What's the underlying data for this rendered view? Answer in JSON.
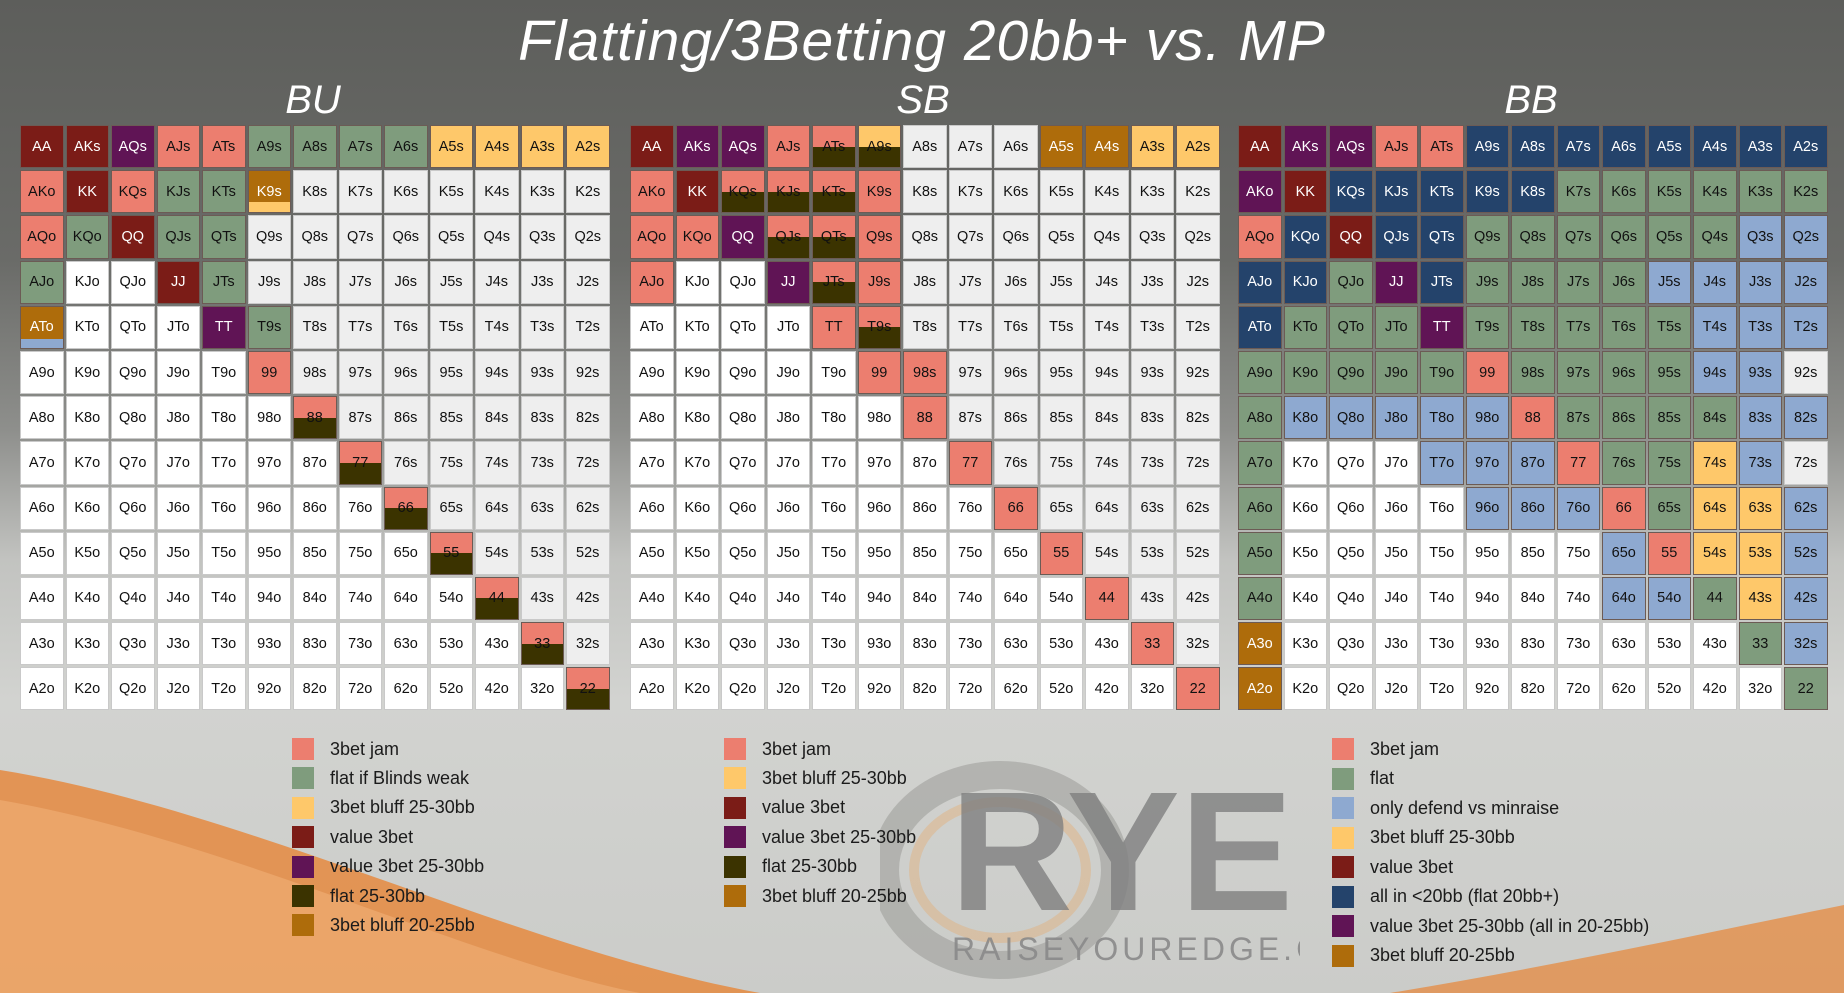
{
  "title": "Flatting/3Betting 20bb+ vs. MP",
  "ranks": [
    "A",
    "K",
    "Q",
    "J",
    "T",
    "9",
    "8",
    "7",
    "6",
    "5",
    "4",
    "3",
    "2"
  ],
  "colors": {
    "jam": "#ec7e6f",
    "flat": "#7f9c7d",
    "bluff": "#fec86a",
    "value": "#7b1c17",
    "value2530": "#601455",
    "flat2530": "#3b3300",
    "bluff2025": "#ae6c0b",
    "minraise": "#8ea9d0",
    "allin": "#24436b"
  },
  "panels": [
    {
      "title": "BU",
      "cells": {
        "AA": {
          "c": "value"
        },
        "AKs": {
          "c": "value"
        },
        "AQs": {
          "c": "value2530"
        },
        "AJs": {
          "c": "jam"
        },
        "ATs": {
          "c": "jam"
        },
        "A9s": {
          "c": "flat"
        },
        "A8s": {
          "c": "flat"
        },
        "A7s": {
          "c": "flat"
        },
        "A6s": {
          "c": "flat"
        },
        "A5s": {
          "c": "bluff"
        },
        "A4s": {
          "c": "bluff"
        },
        "A3s": {
          "c": "bluff"
        },
        "A2s": {
          "c": "bluff"
        },
        "AKo": {
          "c": "jam"
        },
        "KK": {
          "c": "value"
        },
        "KQs": {
          "c": "jam"
        },
        "KJs": {
          "c": "flat"
        },
        "KTs": {
          "c": "flat"
        },
        "K9s": {
          "c": "bluff2025",
          "s": [
            {
              "c": "bluff",
              "f": 0.25
            }
          ]
        },
        "AQo": {
          "c": "jam"
        },
        "KQo": {
          "c": "flat"
        },
        "QQ": {
          "c": "value"
        },
        "QJs": {
          "c": "flat"
        },
        "QTs": {
          "c": "flat"
        },
        "AJo": {
          "c": "flat"
        },
        "JJ": {
          "c": "value"
        },
        "JTs": {
          "c": "flat"
        },
        "ATo": {
          "c": "bluff2025",
          "s": [
            {
              "c": "minraise",
              "f": 0.22
            }
          ]
        },
        "TT": {
          "c": "value2530"
        },
        "T9s": {
          "c": "flat"
        },
        "99": {
          "c": "jam"
        },
        "88": {
          "c": "jam",
          "s": [
            {
              "c": "flat2530",
              "f": 0.5
            }
          ]
        },
        "77": {
          "c": "jam",
          "s": [
            {
              "c": "flat2530",
              "f": 0.5
            }
          ]
        },
        "66": {
          "c": "jam",
          "s": [
            {
              "c": "flat2530",
              "f": 0.5
            }
          ]
        },
        "55": {
          "c": "jam",
          "s": [
            {
              "c": "flat2530",
              "f": 0.5
            }
          ]
        },
        "44": {
          "c": "jam",
          "s": [
            {
              "c": "flat2530",
              "f": 0.5
            }
          ]
        },
        "33": {
          "c": "jam",
          "s": [
            {
              "c": "flat2530",
              "f": 0.5
            }
          ]
        },
        "22": {
          "c": "jam",
          "s": [
            {
              "c": "flat2530",
              "f": 0.5
            }
          ]
        }
      },
      "legend": [
        {
          "key": "jam",
          "label": "3bet jam"
        },
        {
          "key": "flat",
          "label": "flat if Blinds weak"
        },
        {
          "key": "bluff",
          "label": "3bet bluff 25-30bb"
        },
        {
          "key": "value",
          "label": "value 3bet"
        },
        {
          "key": "value2530",
          "label": "value 3bet 25-30bb"
        },
        {
          "key": "flat2530",
          "label": "flat 25-30bb"
        },
        {
          "key": "bluff2025",
          "label": "3bet bluff 20-25bb"
        }
      ]
    },
    {
      "title": "SB",
      "cells": {
        "AA": {
          "c": "value"
        },
        "AKs": {
          "c": "value2530"
        },
        "AQs": {
          "c": "value2530"
        },
        "AJs": {
          "c": "jam"
        },
        "ATs": {
          "c": "jam",
          "s": [
            {
              "c": "flat2530",
              "f": 0.5
            }
          ]
        },
        "A9s": {
          "c": "bluff",
          "s": [
            {
              "c": "flat2530",
              "f": 0.5
            }
          ]
        },
        "A5s": {
          "c": "bluff2025"
        },
        "A4s": {
          "c": "bluff2025"
        },
        "A3s": {
          "c": "bluff"
        },
        "A2s": {
          "c": "bluff"
        },
        "AKo": {
          "c": "jam"
        },
        "KK": {
          "c": "value"
        },
        "KQs": {
          "c": "jam",
          "s": [
            {
              "c": "flat2530",
              "f": 0.5
            }
          ]
        },
        "KJs": {
          "c": "jam",
          "s": [
            {
              "c": "flat2530",
              "f": 0.5
            }
          ]
        },
        "KTs": {
          "c": "jam",
          "s": [
            {
              "c": "flat2530",
              "f": 0.5
            }
          ]
        },
        "K9s": {
          "c": "jam"
        },
        "AQo": {
          "c": "jam"
        },
        "KQo": {
          "c": "jam"
        },
        "QQ": {
          "c": "value2530"
        },
        "QJs": {
          "c": "jam",
          "s": [
            {
              "c": "flat2530",
              "f": 0.5
            }
          ]
        },
        "QTs": {
          "c": "jam",
          "s": [
            {
              "c": "flat2530",
              "f": 0.5
            }
          ]
        },
        "Q9s": {
          "c": "jam"
        },
        "AJo": {
          "c": "jam"
        },
        "JJ": {
          "c": "value2530"
        },
        "JTs": {
          "c": "jam",
          "s": [
            {
              "c": "flat2530",
              "f": 0.5
            }
          ]
        },
        "J9s": {
          "c": "jam"
        },
        "TT": {
          "c": "jam"
        },
        "T9s": {
          "c": "jam",
          "s": [
            {
              "c": "flat2530",
              "f": 0.5
            }
          ]
        },
        "99": {
          "c": "jam"
        },
        "98s": {
          "c": "jam"
        },
        "88": {
          "c": "jam"
        },
        "77": {
          "c": "jam"
        },
        "66": {
          "c": "jam"
        },
        "55": {
          "c": "jam"
        },
        "44": {
          "c": "jam"
        },
        "33": {
          "c": "jam"
        },
        "22": {
          "c": "jam"
        }
      },
      "legend": [
        {
          "key": "jam",
          "label": "3bet jam"
        },
        {
          "key": "bluff",
          "label": "3bet bluff 25-30bb"
        },
        {
          "key": "value",
          "label": "value 3bet"
        },
        {
          "key": "value2530",
          "label": "value 3bet 25-30bb"
        },
        {
          "key": "flat2530",
          "label": "flat 25-30bb"
        },
        {
          "key": "bluff2025",
          "label": "3bet bluff 20-25bb"
        }
      ]
    },
    {
      "title": "BB",
      "cells": {
        "AA": {
          "c": "value"
        },
        "AKs": {
          "c": "value2530"
        },
        "AQs": {
          "c": "value2530"
        },
        "AJs": {
          "c": "jam"
        },
        "ATs": {
          "c": "jam"
        },
        "A9s": {
          "c": "allin"
        },
        "A8s": {
          "c": "allin"
        },
        "A7s": {
          "c": "allin"
        },
        "A6s": {
          "c": "allin"
        },
        "A5s": {
          "c": "allin"
        },
        "A4s": {
          "c": "allin"
        },
        "A3s": {
          "c": "allin"
        },
        "A2s": {
          "c": "allin"
        },
        "AKo": {
          "c": "value2530"
        },
        "KK": {
          "c": "value"
        },
        "KQs": {
          "c": "allin"
        },
        "KJs": {
          "c": "allin"
        },
        "KTs": {
          "c": "allin"
        },
        "K9s": {
          "c": "allin"
        },
        "K8s": {
          "c": "allin"
        },
        "K7s": {
          "c": "flat"
        },
        "K6s": {
          "c": "flat"
        },
        "K5s": {
          "c": "flat"
        },
        "K4s": {
          "c": "flat"
        },
        "K3s": {
          "c": "flat"
        },
        "K2s": {
          "c": "flat"
        },
        "AQo": {
          "c": "jam"
        },
        "KQo": {
          "c": "allin"
        },
        "QQ": {
          "c": "value"
        },
        "QJs": {
          "c": "allin"
        },
        "QTs": {
          "c": "allin"
        },
        "Q9s": {
          "c": "flat"
        },
        "Q8s": {
          "c": "flat"
        },
        "Q7s": {
          "c": "flat"
        },
        "Q6s": {
          "c": "flat"
        },
        "Q5s": {
          "c": "flat"
        },
        "Q4s": {
          "c": "flat"
        },
        "Q3s": {
          "c": "minraise"
        },
        "Q2s": {
          "c": "minraise"
        },
        "AJo": {
          "c": "allin"
        },
        "KJo": {
          "c": "allin"
        },
        "QJo": {
          "c": "flat"
        },
        "JJ": {
          "c": "value2530"
        },
        "JTs": {
          "c": "allin"
        },
        "J9s": {
          "c": "flat"
        },
        "J8s": {
          "c": "flat"
        },
        "J7s": {
          "c": "flat"
        },
        "J6s": {
          "c": "flat"
        },
        "J5s": {
          "c": "minraise"
        },
        "J4s": {
          "c": "minraise"
        },
        "J3s": {
          "c": "minraise"
        },
        "J2s": {
          "c": "minraise"
        },
        "ATo": {
          "c": "allin"
        },
        "KTo": {
          "c": "flat"
        },
        "QTo": {
          "c": "flat"
        },
        "JTo": {
          "c": "flat"
        },
        "TT": {
          "c": "value2530"
        },
        "T9s": {
          "c": "flat"
        },
        "T8s": {
          "c": "flat"
        },
        "T7s": {
          "c": "flat"
        },
        "T6s": {
          "c": "flat"
        },
        "T5s": {
          "c": "flat"
        },
        "T4s": {
          "c": "minraise"
        },
        "T3s": {
          "c": "minraise"
        },
        "T2s": {
          "c": "minraise"
        },
        "A9o": {
          "c": "flat"
        },
        "K9o": {
          "c": "flat"
        },
        "Q9o": {
          "c": "flat"
        },
        "J9o": {
          "c": "flat"
        },
        "T9o": {
          "c": "flat"
        },
        "99": {
          "c": "jam"
        },
        "98s": {
          "c": "flat"
        },
        "97s": {
          "c": "flat"
        },
        "96s": {
          "c": "flat"
        },
        "95s": {
          "c": "flat"
        },
        "94s": {
          "c": "minraise"
        },
        "93s": {
          "c": "minraise"
        },
        "A8o": {
          "c": "flat"
        },
        "K8o": {
          "c": "minraise"
        },
        "Q8o": {
          "c": "minraise"
        },
        "J8o": {
          "c": "minraise"
        },
        "T8o": {
          "c": "minraise"
        },
        "98o": {
          "c": "minraise"
        },
        "88": {
          "c": "jam"
        },
        "87s": {
          "c": "flat"
        },
        "86s": {
          "c": "flat"
        },
        "85s": {
          "c": "flat"
        },
        "84s": {
          "c": "flat"
        },
        "83s": {
          "c": "minraise"
        },
        "82s": {
          "c": "minraise"
        },
        "A7o": {
          "c": "flat"
        },
        "T7o": {
          "c": "minraise"
        },
        "97o": {
          "c": "minraise"
        },
        "87o": {
          "c": "minraise"
        },
        "77": {
          "c": "jam"
        },
        "76s": {
          "c": "flat"
        },
        "75s": {
          "c": "flat"
        },
        "74s": {
          "c": "bluff"
        },
        "73s": {
          "c": "minraise"
        },
        "A6o": {
          "c": "flat"
        },
        "96o": {
          "c": "minraise"
        },
        "86o": {
          "c": "minraise"
        },
        "76o": {
          "c": "minraise"
        },
        "66": {
          "c": "jam"
        },
        "65s": {
          "c": "flat"
        },
        "64s": {
          "c": "bluff"
        },
        "63s": {
          "c": "bluff"
        },
        "62s": {
          "c": "minraise"
        },
        "A5o": {
          "c": "flat"
        },
        "65o": {
          "c": "minraise"
        },
        "55": {
          "c": "jam"
        },
        "54s": {
          "c": "bluff"
        },
        "53s": {
          "c": "bluff"
        },
        "52s": {
          "c": "minraise"
        },
        "A4o": {
          "c": "flat"
        },
        "64o": {
          "c": "minraise"
        },
        "54o": {
          "c": "minraise"
        },
        "44": {
          "c": "flat"
        },
        "43s": {
          "c": "bluff"
        },
        "42s": {
          "c": "minraise"
        },
        "A3o": {
          "c": "bluff2025"
        },
        "33": {
          "c": "flat"
        },
        "32s": {
          "c": "minraise"
        },
        "A2o": {
          "c": "bluff2025"
        },
        "22": {
          "c": "flat"
        }
      },
      "legend": [
        {
          "key": "jam",
          "label": "3bet jam"
        },
        {
          "key": "flat",
          "label": "flat"
        },
        {
          "key": "minraise",
          "label": "only defend vs minraise"
        },
        {
          "key": "bluff",
          "label": "3bet bluff 25-30bb"
        },
        {
          "key": "value",
          "label": "value 3bet"
        },
        {
          "key": "allin",
          "label": "all in <20bb (flat 20bb+)"
        },
        {
          "key": "value2530",
          "label": "value 3bet 25-30bb (all in 20-25bb)"
        },
        {
          "key": "bluff2025",
          "label": "3bet bluff 20-25bb"
        }
      ]
    }
  ],
  "logo": {
    "text": "RYE",
    "tagline": "RAISEYOUREDGE.COM"
  }
}
